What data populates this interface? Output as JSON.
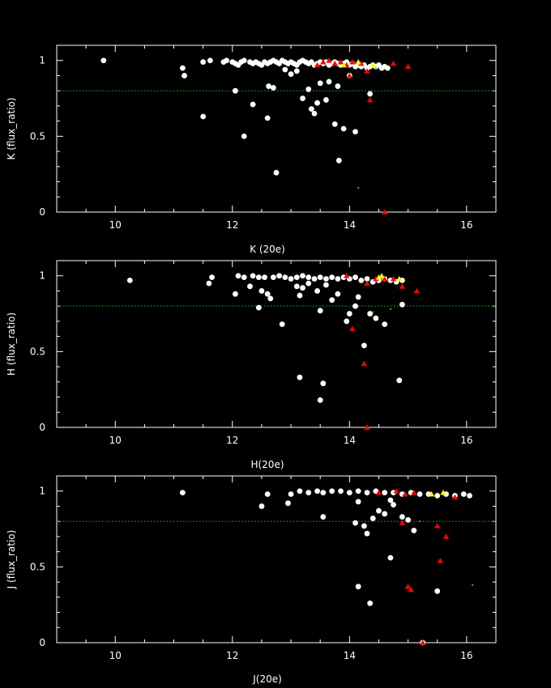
{
  "chart_data": [
    {
      "type": "scatter",
      "xlabel": "K (20e)",
      "ylabel": "K (flux_ratio)",
      "xlim": [
        9,
        16.5
      ],
      "ylim": [
        0,
        1.1
      ],
      "xticks": [
        10,
        12,
        14,
        16
      ],
      "yticks": [
        0,
        0.5,
        1
      ],
      "threshold": 0.8,
      "threshold_color": "#00c000",
      "series": [
        {
          "marker": "circle",
          "color": "#ffffff",
          "points": [
            [
              9.8,
              1.0
            ],
            [
              11.15,
              0.95
            ],
            [
              11.18,
              0.9
            ],
            [
              11.5,
              0.99
            ],
            [
              11.62,
              1.0
            ],
            [
              11.85,
              0.99
            ],
            [
              11.9,
              1.0
            ],
            [
              12.0,
              0.99
            ],
            [
              12.05,
              0.98
            ],
            [
              12.1,
              0.97
            ],
            [
              12.15,
              0.99
            ],
            [
              12.2,
              1.0
            ],
            [
              12.3,
              0.99
            ],
            [
              12.35,
              0.98
            ],
            [
              12.4,
              0.99
            ],
            [
              12.45,
              0.98
            ],
            [
              12.5,
              0.97
            ],
            [
              12.55,
              0.99
            ],
            [
              12.6,
              0.98
            ],
            [
              12.65,
              0.99
            ],
            [
              12.7,
              1.0
            ],
            [
              12.75,
              0.99
            ],
            [
              12.8,
              0.98
            ],
            [
              12.85,
              1.0
            ],
            [
              12.9,
              0.99
            ],
            [
              12.95,
              0.98
            ],
            [
              13.0,
              0.99
            ],
            [
              13.05,
              0.98
            ],
            [
              13.1,
              0.97
            ],
            [
              13.15,
              0.99
            ],
            [
              13.2,
              1.0
            ],
            [
              13.25,
              0.99
            ],
            [
              13.3,
              0.98
            ],
            [
              13.35,
              0.99
            ],
            [
              13.4,
              0.97
            ],
            [
              13.45,
              0.98
            ],
            [
              13.5,
              0.99
            ],
            [
              13.55,
              0.98
            ],
            [
              13.6,
              0.99
            ],
            [
              13.65,
              0.97
            ],
            [
              13.7,
              0.98
            ],
            [
              13.75,
              0.99
            ],
            [
              13.8,
              0.98
            ],
            [
              13.85,
              0.97
            ],
            [
              13.9,
              0.98
            ],
            [
              13.95,
              0.99
            ],
            [
              14.0,
              0.97
            ],
            [
              14.05,
              0.98
            ],
            [
              14.1,
              0.96
            ],
            [
              14.15,
              0.97
            ],
            [
              14.2,
              0.96
            ],
            [
              14.25,
              0.97
            ],
            [
              14.3,
              0.95
            ],
            [
              14.35,
              0.96
            ],
            [
              14.4,
              0.97
            ],
            [
              14.45,
              0.96
            ],
            [
              14.5,
              0.97
            ],
            [
              14.55,
              0.95
            ],
            [
              14.6,
              0.96
            ],
            [
              14.65,
              0.95
            ],
            [
              11.5,
              0.63
            ],
            [
              12.05,
              0.8
            ],
            [
              12.2,
              0.5
            ],
            [
              12.35,
              0.71
            ],
            [
              12.6,
              0.62
            ],
            [
              12.62,
              0.83
            ],
            [
              12.7,
              0.82
            ],
            [
              12.75,
              0.26
            ],
            [
              12.9,
              0.94
            ],
            [
              13.0,
              0.91
            ],
            [
              13.1,
              0.93
            ],
            [
              13.2,
              0.75
            ],
            [
              13.3,
              0.81
            ],
            [
              13.35,
              0.68
            ],
            [
              13.4,
              0.65
            ],
            [
              13.45,
              0.72
            ],
            [
              13.5,
              0.85
            ],
            [
              13.6,
              0.74
            ],
            [
              13.65,
              0.86
            ],
            [
              13.75,
              0.58
            ],
            [
              13.8,
              0.83
            ],
            [
              13.82,
              0.34
            ],
            [
              13.9,
              0.55
            ],
            [
              14.0,
              0.9
            ],
            [
              14.1,
              0.53
            ],
            [
              14.35,
              0.78
            ]
          ]
        },
        {
          "marker": "triangle",
          "color": "#ff0000",
          "points": [
            [
              13.45,
              0.97
            ],
            [
              13.55,
              0.99
            ],
            [
              13.65,
              1.0
            ],
            [
              13.75,
              0.98
            ],
            [
              13.85,
              0.99
            ],
            [
              13.95,
              0.97
            ],
            [
              14.05,
              0.99
            ],
            [
              14.2,
              0.98
            ],
            [
              14.3,
              0.93
            ],
            [
              14.35,
              0.74
            ],
            [
              14.6,
              0.0
            ],
            [
              14.75,
              0.98
            ],
            [
              15.0,
              0.96
            ],
            [
              14.0,
              0.9
            ]
          ]
        },
        {
          "marker": "triangle",
          "color": "#ffff00",
          "points": [
            [
              13.9,
              0.97
            ],
            [
              14.15,
              0.99
            ],
            [
              14.4,
              0.97
            ]
          ]
        },
        {
          "marker": "dot",
          "color": "#00ff00",
          "points": [
            [
              14.15,
              0.16
            ],
            [
              14.45,
              0.95
            ]
          ]
        }
      ]
    },
    {
      "type": "scatter",
      "xlabel": "H(20e)",
      "ylabel": "H (flux_ratio)",
      "xlim": [
        9,
        16.5
      ],
      "ylim": [
        0,
        1.1
      ],
      "xticks": [
        10,
        12,
        14,
        16
      ],
      "yticks": [
        0,
        0.5,
        1
      ],
      "threshold": 0.8,
      "threshold_color": "#00c000",
      "series": [
        {
          "marker": "circle",
          "color": "#ffffff",
          "points": [
            [
              10.25,
              0.97
            ],
            [
              11.6,
              0.95
            ],
            [
              11.65,
              0.99
            ],
            [
              12.05,
              0.88
            ],
            [
              12.1,
              1.0
            ],
            [
              12.2,
              0.99
            ],
            [
              12.3,
              0.93
            ],
            [
              12.35,
              1.0
            ],
            [
              12.45,
              0.99
            ],
            [
              12.5,
              0.9
            ],
            [
              12.55,
              0.99
            ],
            [
              12.6,
              0.88
            ],
            [
              12.65,
              0.85
            ],
            [
              12.7,
              0.99
            ],
            [
              12.8,
              1.0
            ],
            [
              12.9,
              0.99
            ],
            [
              13.0,
              0.98
            ],
            [
              13.1,
              0.99
            ],
            [
              13.2,
              1.0
            ],
            [
              13.3,
              0.99
            ],
            [
              13.4,
              0.98
            ],
            [
              13.5,
              0.99
            ],
            [
              13.6,
              0.98
            ],
            [
              13.7,
              0.99
            ],
            [
              13.8,
              0.98
            ],
            [
              13.9,
              0.99
            ],
            [
              14.0,
              0.98
            ],
            [
              14.1,
              0.99
            ],
            [
              14.2,
              0.97
            ],
            [
              14.3,
              0.98
            ],
            [
              14.4,
              0.96
            ],
            [
              14.5,
              0.97
            ],
            [
              14.6,
              0.98
            ],
            [
              14.7,
              0.97
            ],
            [
              14.8,
              0.96
            ],
            [
              14.9,
              0.97
            ],
            [
              12.45,
              0.79
            ],
            [
              12.85,
              0.68
            ],
            [
              13.1,
              0.93
            ],
            [
              13.15,
              0.87
            ],
            [
              13.2,
              0.92
            ],
            [
              13.3,
              0.95
            ],
            [
              13.45,
              0.9
            ],
            [
              13.5,
              0.77
            ],
            [
              13.6,
              0.94
            ],
            [
              13.7,
              0.84
            ],
            [
              13.8,
              0.88
            ],
            [
              13.95,
              0.7
            ],
            [
              14.0,
              0.75
            ],
            [
              14.1,
              0.8
            ],
            [
              14.15,
              0.86
            ],
            [
              14.25,
              0.54
            ],
            [
              14.35,
              0.75
            ],
            [
              14.45,
              0.72
            ],
            [
              14.6,
              0.68
            ],
            [
              14.9,
              0.81
            ],
            [
              13.15,
              0.33
            ],
            [
              13.55,
              0.29
            ],
            [
              13.5,
              0.18
            ],
            [
              14.85,
              0.31
            ]
          ]
        },
        {
          "marker": "triangle",
          "color": "#ff0000",
          "points": [
            [
              13.95,
              1.0
            ],
            [
              14.05,
              0.65
            ],
            [
              14.25,
              0.42
            ],
            [
              14.3,
              0.0
            ],
            [
              14.3,
              0.95
            ],
            [
              14.45,
              0.98
            ],
            [
              14.6,
              0.98
            ],
            [
              14.75,
              0.98
            ],
            [
              14.9,
              0.93
            ],
            [
              15.15,
              0.9
            ]
          ]
        },
        {
          "marker": "triangle",
          "color": "#ffff00",
          "points": [
            [
              14.5,
              0.99
            ],
            [
              14.55,
              1.0
            ],
            [
              14.85,
              0.98
            ]
          ]
        },
        {
          "marker": "dot",
          "color": "#00ff00",
          "points": [
            [
              14.4,
              0.76
            ],
            [
              14.7,
              0.78
            ]
          ]
        }
      ]
    },
    {
      "type": "scatter",
      "xlabel": "J(20e)",
      "ylabel": "J (flux_ratio)",
      "xlim": [
        9,
        16.5
      ],
      "ylim": [
        0,
        1.1
      ],
      "xticks": [
        10,
        12,
        14,
        16
      ],
      "yticks": [
        0,
        0.5,
        1
      ],
      "threshold": 0.8,
      "threshold_color": "#00c000",
      "series": [
        {
          "marker": "circle",
          "color": "#ffffff",
          "points": [
            [
              11.15,
              0.99
            ],
            [
              12.5,
              0.9
            ],
            [
              12.6,
              0.98
            ],
            [
              12.95,
              0.92
            ],
            [
              13.0,
              0.98
            ],
            [
              13.15,
              1.0
            ],
            [
              13.3,
              0.99
            ],
            [
              13.45,
              1.0
            ],
            [
              13.55,
              0.99
            ],
            [
              13.7,
              1.0
            ],
            [
              13.85,
              1.0
            ],
            [
              14.0,
              0.99
            ],
            [
              14.15,
              1.0
            ],
            [
              14.3,
              0.99
            ],
            [
              14.45,
              1.0
            ],
            [
              14.6,
              0.99
            ],
            [
              14.75,
              0.99
            ],
            [
              14.9,
              0.98
            ],
            [
              15.05,
              0.99
            ],
            [
              15.2,
              0.98
            ],
            [
              15.35,
              0.98
            ],
            [
              15.5,
              0.97
            ],
            [
              15.65,
              0.98
            ],
            [
              15.8,
              0.97
            ],
            [
              15.95,
              0.98
            ],
            [
              16.05,
              0.97
            ],
            [
              13.55,
              0.83
            ],
            [
              14.1,
              0.79
            ],
            [
              14.15,
              0.93
            ],
            [
              14.25,
              0.77
            ],
            [
              14.3,
              0.72
            ],
            [
              14.4,
              0.82
            ],
            [
              14.5,
              0.87
            ],
            [
              14.6,
              0.85
            ],
            [
              14.7,
              0.94
            ],
            [
              14.75,
              0.91
            ],
            [
              14.9,
              0.83
            ],
            [
              15.0,
              0.81
            ],
            [
              15.1,
              0.74
            ],
            [
              14.7,
              0.56
            ],
            [
              14.15,
              0.37
            ],
            [
              14.35,
              0.26
            ],
            [
              15.5,
              0.34
            ],
            [
              15.25,
              0.0
            ]
          ]
        },
        {
          "marker": "triangle",
          "color": "#ff0000",
          "points": [
            [
              14.5,
              0.99
            ],
            [
              14.8,
              1.0
            ],
            [
              14.95,
              0.98
            ],
            [
              15.1,
              0.99
            ],
            [
              14.9,
              0.79
            ],
            [
              15.0,
              0.37
            ],
            [
              15.05,
              0.35
            ],
            [
              15.5,
              0.77
            ],
            [
              15.55,
              0.54
            ],
            [
              15.65,
              0.7
            ],
            [
              15.8,
              0.96
            ],
            [
              15.25,
              0.0
            ]
          ]
        },
        {
          "marker": "triangle",
          "color": "#ffff00",
          "points": [
            [
              15.4,
              0.98
            ],
            [
              15.6,
              0.99
            ]
          ]
        },
        {
          "marker": "dot",
          "color": "#00ff00",
          "points": [
            [
              15.2,
              0.8
            ],
            [
              16.1,
              0.38
            ]
          ]
        }
      ]
    }
  ]
}
